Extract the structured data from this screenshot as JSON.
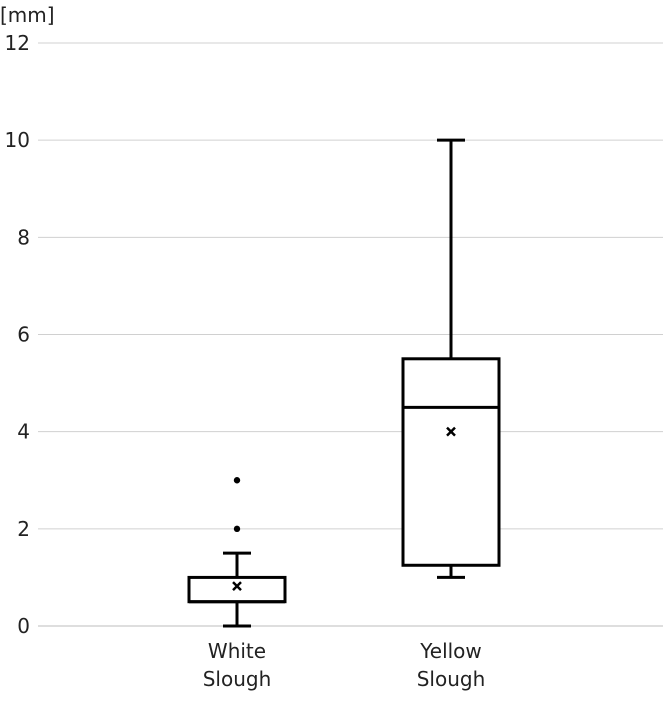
{
  "chart_data": {
    "type": "box",
    "unit_label": "[mm]",
    "title": "",
    "xlabel": "",
    "ylabel": "",
    "ylim": [
      0,
      12
    ],
    "yticks": [
      0,
      2,
      4,
      6,
      8,
      10,
      12
    ],
    "grid": true,
    "legend": "none",
    "categories": [
      {
        "line1": "White",
        "line2": "Slough"
      },
      {
        "line1": "Yellow",
        "line2": "Slough"
      }
    ],
    "boxes": [
      {
        "category": "White Slough",
        "whisker_low": 0,
        "q1": 0.5,
        "median": 0.5,
        "q3": 1.0,
        "whisker_high": 1.5,
        "mean": 0.82,
        "outliers": [
          2,
          3
        ]
      },
      {
        "category": "Yellow Slough",
        "whisker_low": 1.0,
        "q1": 1.25,
        "median": 4.5,
        "q3": 5.5,
        "whisker_high": 10.0,
        "mean": 4.0,
        "outliers": []
      }
    ],
    "colors": {
      "box_stroke": "#000000",
      "box_fill": "#ffffff",
      "grid": "#d0d0d0",
      "text": "#222222"
    }
  }
}
